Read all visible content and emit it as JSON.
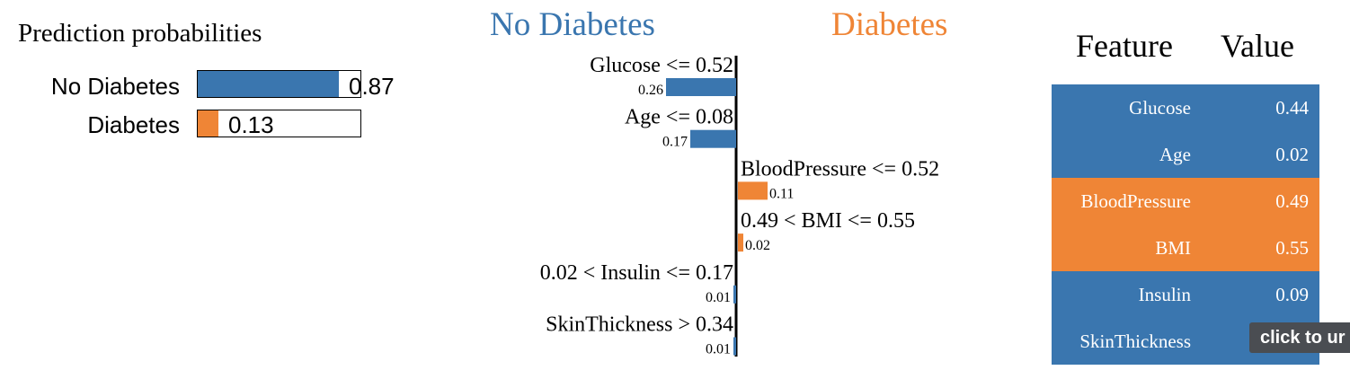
{
  "colors": {
    "negative": "#3a76af",
    "positive": "#ef8536"
  },
  "probabilities": {
    "title": "Prediction probabilities",
    "items": [
      {
        "label": "No Diabetes",
        "value": 0.87,
        "value_label": "0.87",
        "color": "#3a76af"
      },
      {
        "label": "Diabetes",
        "value": 0.13,
        "value_label": "0.13",
        "color": "#ef8536"
      }
    ]
  },
  "explanation": {
    "negative_class": "No Diabetes",
    "positive_class": "Diabetes"
  },
  "chart_data": {
    "type": "bar",
    "categories": [
      "Glucose <= 0.52",
      "Age <= 0.08",
      "BloodPressure <= 0.52",
      "0.49 < BMI <= 0.55",
      "0.02 < Insulin <= 0.17",
      "SkinThickness > 0.34"
    ],
    "values": [
      -0.26,
      -0.17,
      0.11,
      0.02,
      -0.01,
      -0.01
    ],
    "value_labels": [
      "0.26",
      "0.17",
      "0.11",
      "0.02",
      "0.01",
      "0.01"
    ]
  },
  "table": {
    "header_feature": "Feature",
    "header_value": "Value",
    "rows": [
      {
        "feature": "Glucose",
        "value": "0.44",
        "side": "negative"
      },
      {
        "feature": "Age",
        "value": "0.02",
        "side": "negative"
      },
      {
        "feature": "BloodPressure",
        "value": "0.49",
        "side": "positive"
      },
      {
        "feature": "BMI",
        "value": "0.55",
        "side": "positive"
      },
      {
        "feature": "Insulin",
        "value": "0.09",
        "side": "negative"
      },
      {
        "feature": "SkinThickness",
        "value": "",
        "side": "negative"
      }
    ]
  },
  "tooltip": {
    "text": "click to ur"
  }
}
